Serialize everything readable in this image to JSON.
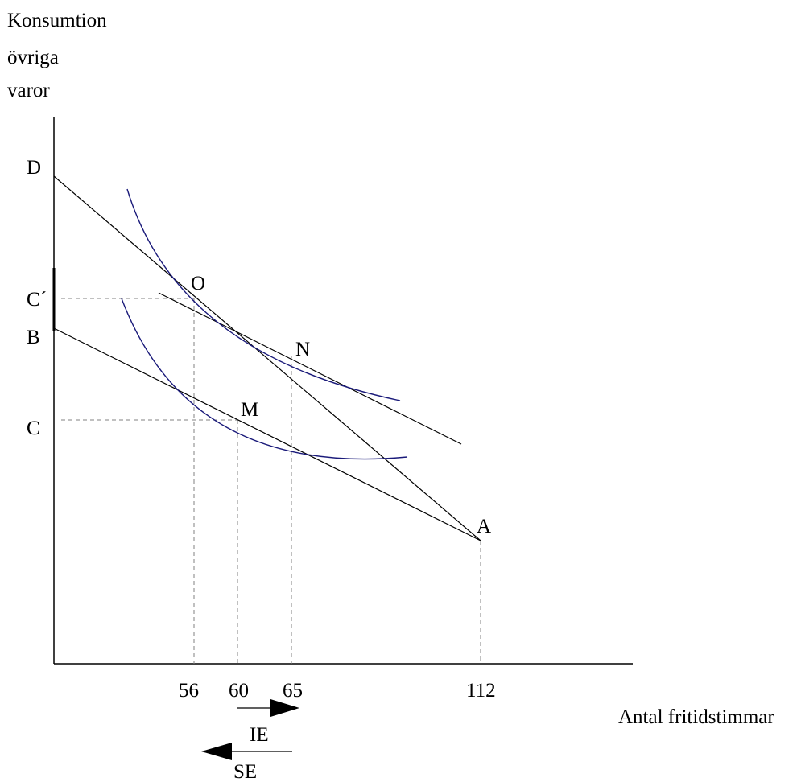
{
  "y_axis_title": [
    "Konsumtion",
    "övriga",
    "varor"
  ],
  "x_axis_title": "Antal fritidstimmar",
  "y_labels": {
    "D": "D",
    "C_prime": "C´",
    "B": "B",
    "C": "C"
  },
  "x_ticks": {
    "t56": "56",
    "t60": "60",
    "t65": "65",
    "t112": "112"
  },
  "points": {
    "O": "O",
    "N": "N",
    "M": "M",
    "A": "A"
  },
  "effects": {
    "income": "IE",
    "substitution": "SE"
  },
  "colors": {
    "axes": "#000000",
    "budget_lines": "#000000",
    "indifference_curves": "#1a1a7a",
    "guides": "#808080"
  }
}
